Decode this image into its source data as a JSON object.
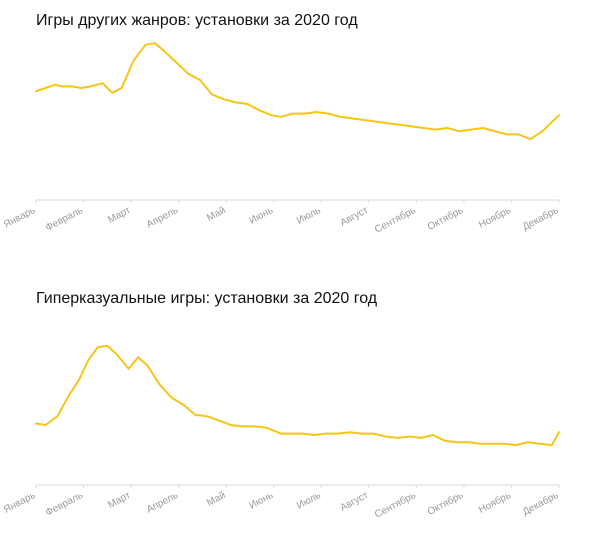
{
  "chart_data": [
    {
      "type": "line",
      "title": "Игры других жанров: установки за 2020 год",
      "xlabel": "",
      "ylabel": "",
      "grid": false,
      "x_tick_labels": [
        "Январь",
        "Февраль",
        "Март",
        "Апрель",
        "Май",
        "Июнь",
        "Июль",
        "Август",
        "Сентябрь",
        "Октябрь",
        "Ноябрь",
        "Декабрь"
      ],
      "x_range": [
        0,
        11
      ],
      "ylim": [
        0,
        100
      ],
      "color": "#F5C518",
      "series": [
        {
          "x": [
            0,
            0.2,
            0.4,
            0.55,
            0.75,
            0.95,
            1.15,
            1.4,
            1.6,
            1.8,
            2.05,
            2.3,
            2.5,
            2.7,
            2.95,
            3.2,
            3.45,
            3.7,
            3.95,
            4.2,
            4.45,
            4.7,
            4.95,
            5.15,
            5.4,
            5.65,
            5.9,
            6.15,
            6.4,
            6.65,
            6.9,
            7.15,
            7.4,
            7.65,
            7.9,
            8.15,
            8.4,
            8.65,
            8.9,
            9.15,
            9.4,
            9.65,
            9.9,
            10.15,
            10.4,
            10.65,
            11
          ],
          "values": [
            68,
            70,
            72,
            71,
            71,
            70,
            71,
            73,
            67,
            70,
            87,
            97,
            98,
            93,
            86,
            79,
            75,
            66,
            63,
            61,
            60,
            56,
            53,
            52,
            54,
            54,
            55,
            54,
            52,
            51,
            50,
            49,
            48,
            47,
            46,
            45,
            44,
            45,
            43,
            44,
            45,
            43,
            41,
            41,
            38,
            43,
            53
          ]
        }
      ]
    },
    {
      "type": "line",
      "title": "Гиперказуальные игры: установки за 2020 год",
      "xlabel": "",
      "ylabel": "",
      "grid": false,
      "x_tick_labels": [
        "Январь",
        "Февраль",
        "Март",
        "Апрель",
        "Май",
        "Июнь",
        "Июль",
        "Август",
        "Сентябрь",
        "Октябрь",
        "Ноябрь",
        "Декабрь"
      ],
      "x_range": [
        0,
        11
      ],
      "ylim": [
        0,
        100
      ],
      "color": "#F5C518",
      "series": [
        {
          "x": [
            0,
            0.2,
            0.45,
            0.7,
            0.9,
            1.1,
            1.3,
            1.5,
            1.7,
            1.95,
            2.15,
            2.35,
            2.6,
            2.85,
            3.1,
            3.35,
            3.6,
            3.85,
            4.1,
            4.35,
            4.6,
            4.85,
            5.15,
            5.35,
            5.6,
            5.85,
            6.1,
            6.35,
            6.6,
            6.85,
            7.1,
            7.35,
            7.6,
            7.85,
            8.1,
            8.35,
            8.6,
            8.85,
            9.1,
            9.35,
            9.6,
            9.85,
            10.1,
            10.35,
            10.6,
            10.85,
            11
          ],
          "values": [
            42,
            41,
            47,
            62,
            72,
            86,
            95,
            96,
            90,
            80,
            88,
            82,
            69,
            60,
            55,
            48,
            47,
            44,
            41,
            40,
            40,
            39,
            35,
            35,
            35,
            34,
            35,
            35,
            36,
            35,
            35,
            33,
            32,
            33,
            32,
            34,
            30,
            29,
            29,
            28,
            28,
            28,
            27,
            29,
            28,
            27,
            36
          ]
        }
      ]
    }
  ]
}
